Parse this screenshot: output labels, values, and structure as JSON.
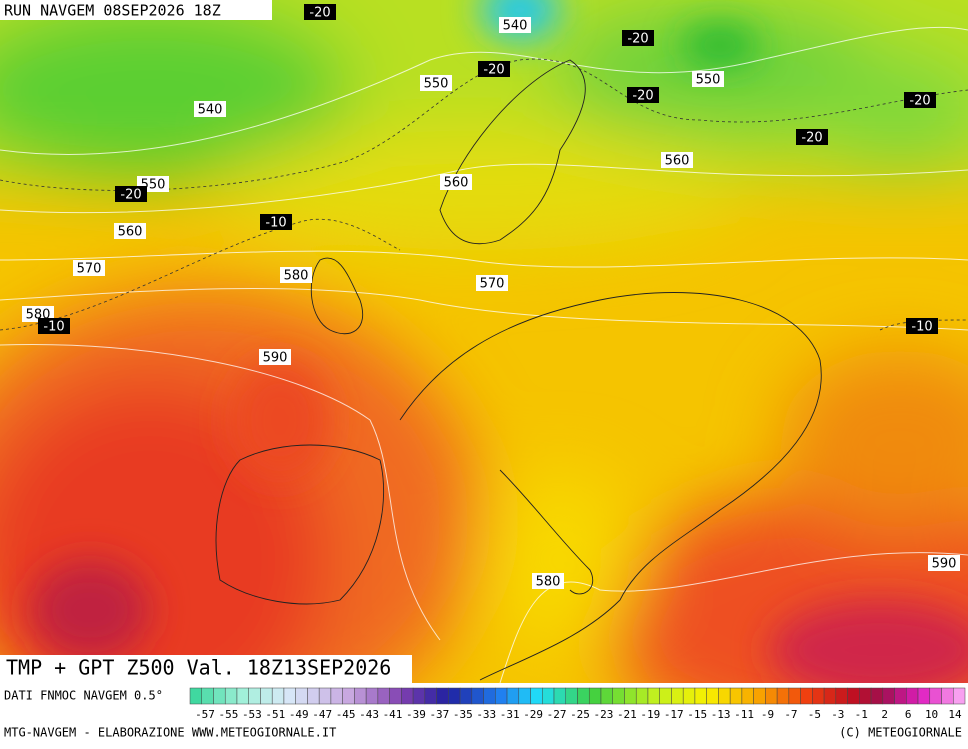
{
  "header": {
    "run": "RUN NAVGEM 08SEP2026 18Z"
  },
  "title": "TMP + GPT Z500 Val. 18Z13SEP2026",
  "contour_labels": [
    "-20",
    "540",
    "-20",
    "-20",
    "550",
    "-20",
    "550",
    "540",
    "-20",
    "-20",
    "560",
    "560",
    "550",
    "-20",
    "-10",
    "560",
    "570",
    "580",
    "570",
    "580",
    "-10",
    "-10",
    "590",
    "590",
    "580"
  ],
  "colorbar": {
    "source": "DATI FNMOC NAVGEM 0.5°",
    "labels": [
      "-57",
      "-55",
      "-53",
      "-51",
      "-49",
      "-47",
      "-45",
      "-43",
      "-41",
      "-39",
      "-37",
      "-35",
      "-33",
      "-31",
      "-29",
      "-27",
      "-25",
      "-23",
      "-21",
      "-19",
      "-17",
      "-15",
      "-13",
      "-11",
      "-9",
      "-7",
      "-5",
      "-3",
      "-1",
      "2",
      "6",
      "10",
      "14"
    ]
  },
  "footer": {
    "left": "MTG-NAVGEM - ELABORAZIONE WWW.METEOGIORNALE.IT",
    "right": "(C) METEOGIORNALE"
  }
}
